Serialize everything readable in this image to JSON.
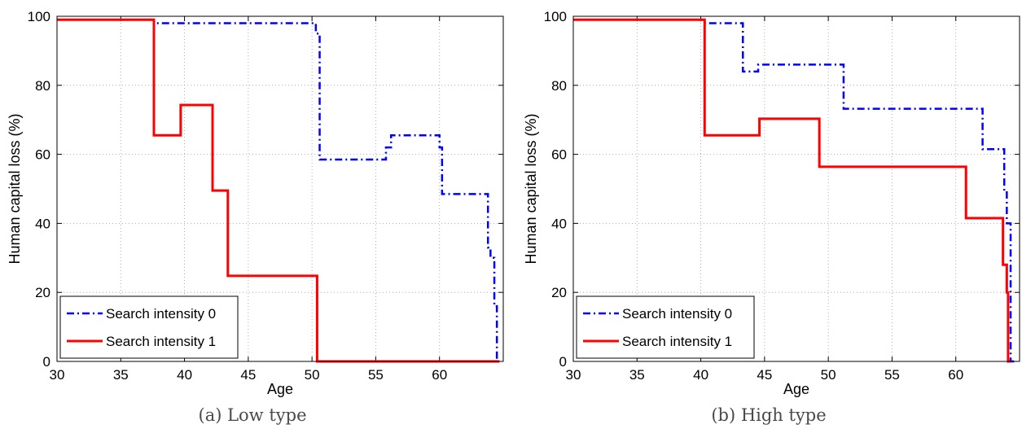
{
  "chart_data": [
    {
      "type": "line",
      "caption": "(a) Low type",
      "xlabel": "Age",
      "ylabel": "Human capital loss (%)",
      "xlim": [
        30,
        65
      ],
      "ylim": [
        0,
        100
      ],
      "xticks": [
        30,
        35,
        40,
        45,
        50,
        55,
        60
      ],
      "yticks": [
        0,
        20,
        40,
        60,
        80,
        100
      ],
      "grid": true,
      "legend_position": "bottom-left",
      "series": [
        {
          "name": "Search intensity 0",
          "color": "#0000ff",
          "style": "dash-dot",
          "x": [
            30,
            37.6,
            37.6,
            50.3,
            50.3,
            50.6,
            50.6,
            55.8,
            55.8,
            56.2,
            56.2,
            60.0,
            60.0,
            60.2,
            60.2,
            63.8,
            63.8,
            64.0,
            64.0,
            64.3,
            64.3,
            64.5,
            64.5,
            64.7
          ],
          "y": [
            99,
            99,
            98,
            98,
            95,
            95,
            58.5,
            58.5,
            62,
            62,
            65.5,
            65.5,
            62,
            62,
            48.5,
            48.5,
            33,
            33,
            30,
            30,
            16,
            16,
            0,
            0
          ]
        },
        {
          "name": "Search intensity 1",
          "color": "#ff0000",
          "style": "solid",
          "x": [
            30,
            37.6,
            37.6,
            39.7,
            39.7,
            42.2,
            42.2,
            43.4,
            43.4,
            50.4,
            50.4,
            64.7
          ],
          "y": [
            99,
            99,
            65.5,
            65.5,
            74.3,
            74.3,
            49.5,
            49.5,
            24.8,
            24.8,
            0,
            0
          ]
        }
      ]
    },
    {
      "type": "line",
      "caption": "(b) High type",
      "xlabel": "Age",
      "ylabel": "Human capital loss (%)",
      "xlim": [
        30,
        65
      ],
      "ylim": [
        0,
        100
      ],
      "xticks": [
        30,
        35,
        40,
        45,
        50,
        55,
        60
      ],
      "yticks": [
        0,
        20,
        40,
        60,
        80,
        100
      ],
      "grid": true,
      "legend_position": "bottom-left",
      "series": [
        {
          "name": "Search intensity 0",
          "color": "#0000ff",
          "style": "dash-dot",
          "x": [
            30,
            40.2,
            40.2,
            43.3,
            43.3,
            44.5,
            44.5,
            51.2,
            51.2,
            62.1,
            62.1,
            63.8,
            63.8,
            64.0,
            64.0,
            64.3,
            64.3,
            64.6
          ],
          "y": [
            99,
            99,
            98,
            98,
            84,
            84,
            86,
            86,
            73.2,
            73.2,
            61.5,
            61.5,
            49,
            49,
            40,
            40,
            0,
            0
          ]
        },
        {
          "name": "Search intensity 1",
          "color": "#ff0000",
          "style": "solid",
          "x": [
            30,
            40.3,
            40.3,
            44.6,
            44.6,
            49.3,
            49.3,
            60.8,
            60.8,
            63.7,
            63.7,
            64.0,
            64.0,
            64.1,
            64.1,
            64.3
          ],
          "y": [
            99,
            99,
            65.5,
            65.5,
            70.3,
            70.3,
            56.4,
            56.4,
            41.5,
            41.5,
            28,
            28,
            20,
            20,
            0,
            0
          ]
        }
      ]
    }
  ]
}
